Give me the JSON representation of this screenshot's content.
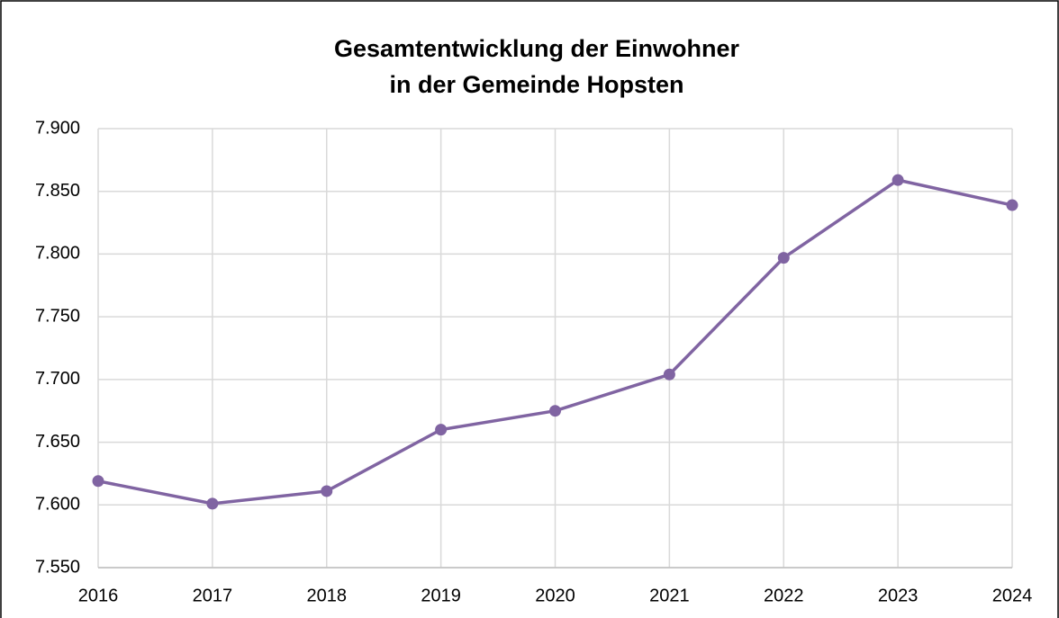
{
  "chart_data": {
    "type": "line",
    "title": [
      "Gesamtentwicklung der Einwohner",
      "in der Gemeinde Hopsten"
    ],
    "categories": [
      "2016",
      "2017",
      "2018",
      "2019",
      "2020",
      "2021",
      "2022",
      "2023",
      "2024"
    ],
    "series": [
      {
        "name": "Einwohner",
        "color": "#8064a2",
        "values": [
          7619,
          7601,
          7611,
          7660,
          7675,
          7704,
          7797,
          7859,
          7839
        ]
      }
    ],
    "ylim": [
      7550,
      7900
    ],
    "yticks": [
      {
        "value": 7550,
        "label": "7.550"
      },
      {
        "value": 7600,
        "label": "7.600"
      },
      {
        "value": 7650,
        "label": "7.650"
      },
      {
        "value": 7700,
        "label": "7.700"
      },
      {
        "value": 7750,
        "label": "7.750"
      },
      {
        "value": 7800,
        "label": "7.800"
      },
      {
        "value": 7850,
        "label": "7.850"
      },
      {
        "value": 7900,
        "label": "7.900"
      }
    ],
    "grid": true
  }
}
